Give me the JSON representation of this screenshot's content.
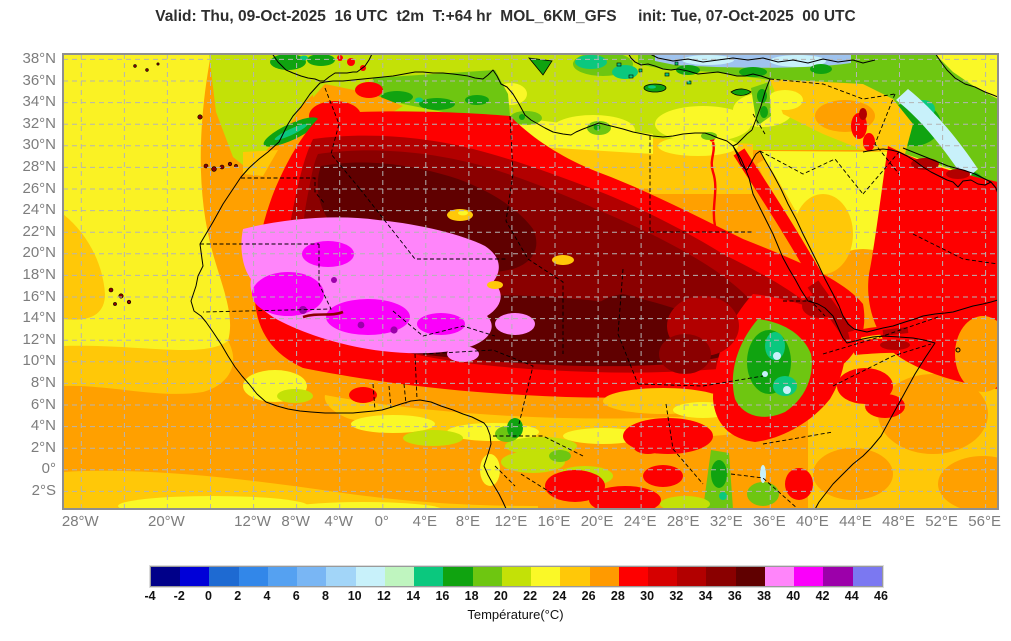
{
  "title": "Valid: Thu, 09-Oct-2025  16 UTC  t2m  T:+64 hr  MOL_6KM_GFS     init: Tue, 07-Oct-2025  00 UTC",
  "axes": {
    "lat_labels": [
      "38°N",
      "36°N",
      "34°N",
      "32°N",
      "30°N",
      "28°N",
      "26°N",
      "24°N",
      "22°N",
      "20°N",
      "18°N",
      "16°N",
      "14°N",
      "12°N",
      "10°N",
      "8°N",
      "6°N",
      "4°N",
      "2°N",
      "0°",
      "2°S"
    ],
    "lon_labels": [
      "28°W",
      "20°W",
      "12°W",
      "8°W",
      "4°W",
      "0°",
      "4°E",
      "8°E",
      "12°E",
      "16°E",
      "20°E",
      "24°E",
      "28°E",
      "32°E",
      "36°E",
      "40°E",
      "44°E",
      "48°E",
      "52°E",
      "56°E"
    ],
    "lon_degrees": [
      -28,
      -20,
      -12,
      -8,
      -4,
      0,
      4,
      8,
      12,
      16,
      20,
      24,
      28,
      32,
      36,
      40,
      44,
      48,
      52,
      56
    ]
  },
  "colorbar": {
    "label": "Température(°C)",
    "tick_values": [
      "-4",
      "-2",
      "0",
      "2",
      "4",
      "6",
      "8",
      "10",
      "12",
      "14",
      "16",
      "18",
      "20",
      "22",
      "24",
      "26",
      "28",
      "30",
      "32",
      "34",
      "36",
      "38",
      "40",
      "42",
      "44",
      "46"
    ],
    "segment_colors": [
      "#000089",
      "#0000D8",
      "#1E6AD2",
      "#3287E9",
      "#55A1F1",
      "#79B6F4",
      "#A2D5F8",
      "#C8F1FA",
      "#BFF5BF",
      "#0BC87E",
      "#10A310",
      "#6EC611",
      "#C3E107",
      "#FAF827",
      "#FFC808",
      "#FF9A00",
      "#FE0000",
      "#D60000",
      "#B20000",
      "#8A0000",
      "#600000",
      "#FF85FA",
      "#FA00FA",
      "#9C00AA",
      "#7B78F1"
    ]
  },
  "chart_data": {
    "type": "heatmap",
    "variable": "t2m",
    "units": "°C",
    "value_range": [
      -4,
      46
    ],
    "legend_position": "bottom",
    "grid": true
  }
}
